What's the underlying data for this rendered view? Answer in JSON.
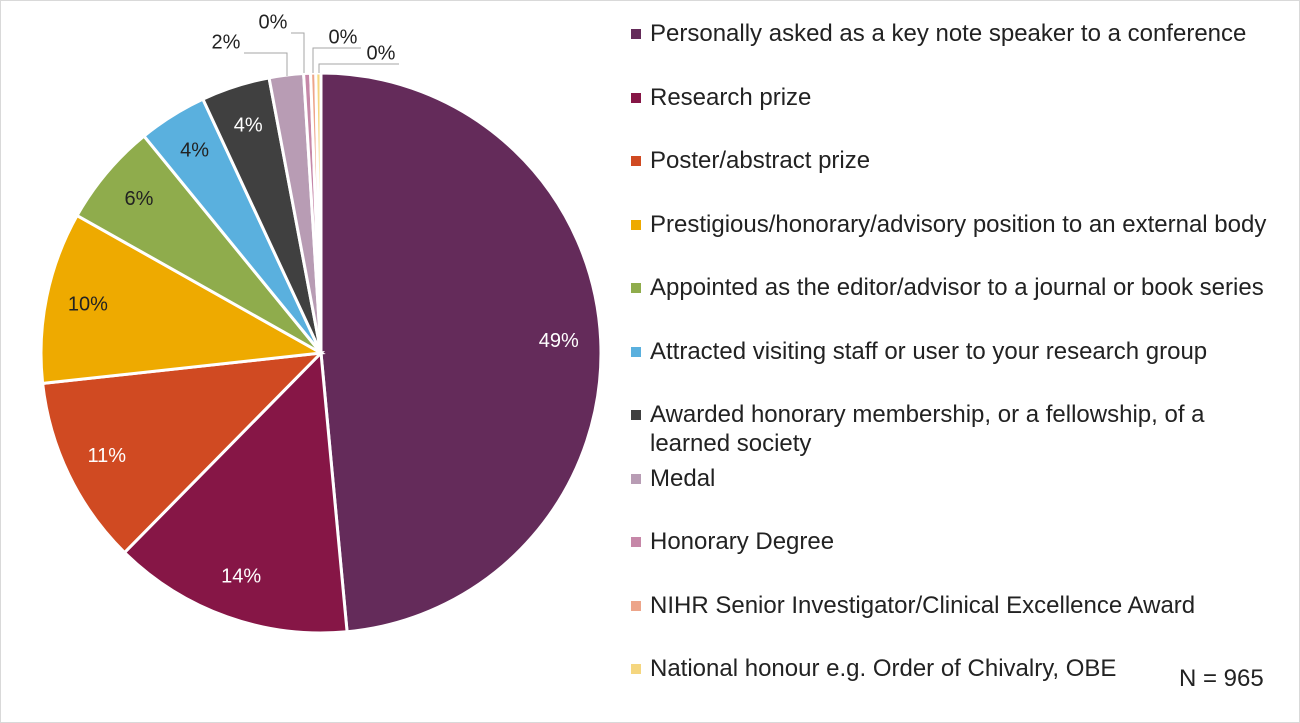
{
  "chart_data": {
    "type": "pie",
    "categories": [
      "Personally asked as a key note speaker to a conference",
      "Research prize",
      "Poster/abstract prize",
      "Prestigious/honorary/advisory position to an external body",
      "Appointed as the editor/advisor to a journal or book series",
      "Attracted visiting staff or user to your research group",
      "Awarded honorary membership, or a fellowship, of a learned society",
      "Medal",
      "Honorary Degree",
      "NIHR Senior Investigator/Clinical Excellence Award",
      "National honour e.g. Order of Chivalry, OBE"
    ],
    "values": [
      49,
      14,
      11,
      10,
      6,
      4,
      4,
      2,
      0.4,
      0.3,
      0.3
    ],
    "value_labels": [
      "49%",
      "14%",
      "11%",
      "10%",
      "6%",
      "4%",
      "4%",
      "2%",
      "0%",
      "0%",
      "0%"
    ],
    "colors": [
      "#642b5a",
      "#861646",
      "#d04a22",
      "#eeaa00",
      "#8fac4c",
      "#5ab0de",
      "#404040",
      "#b89cb4",
      "#c687a8",
      "#eda58a",
      "#f5d67f"
    ],
    "annotation": "N = 965"
  }
}
